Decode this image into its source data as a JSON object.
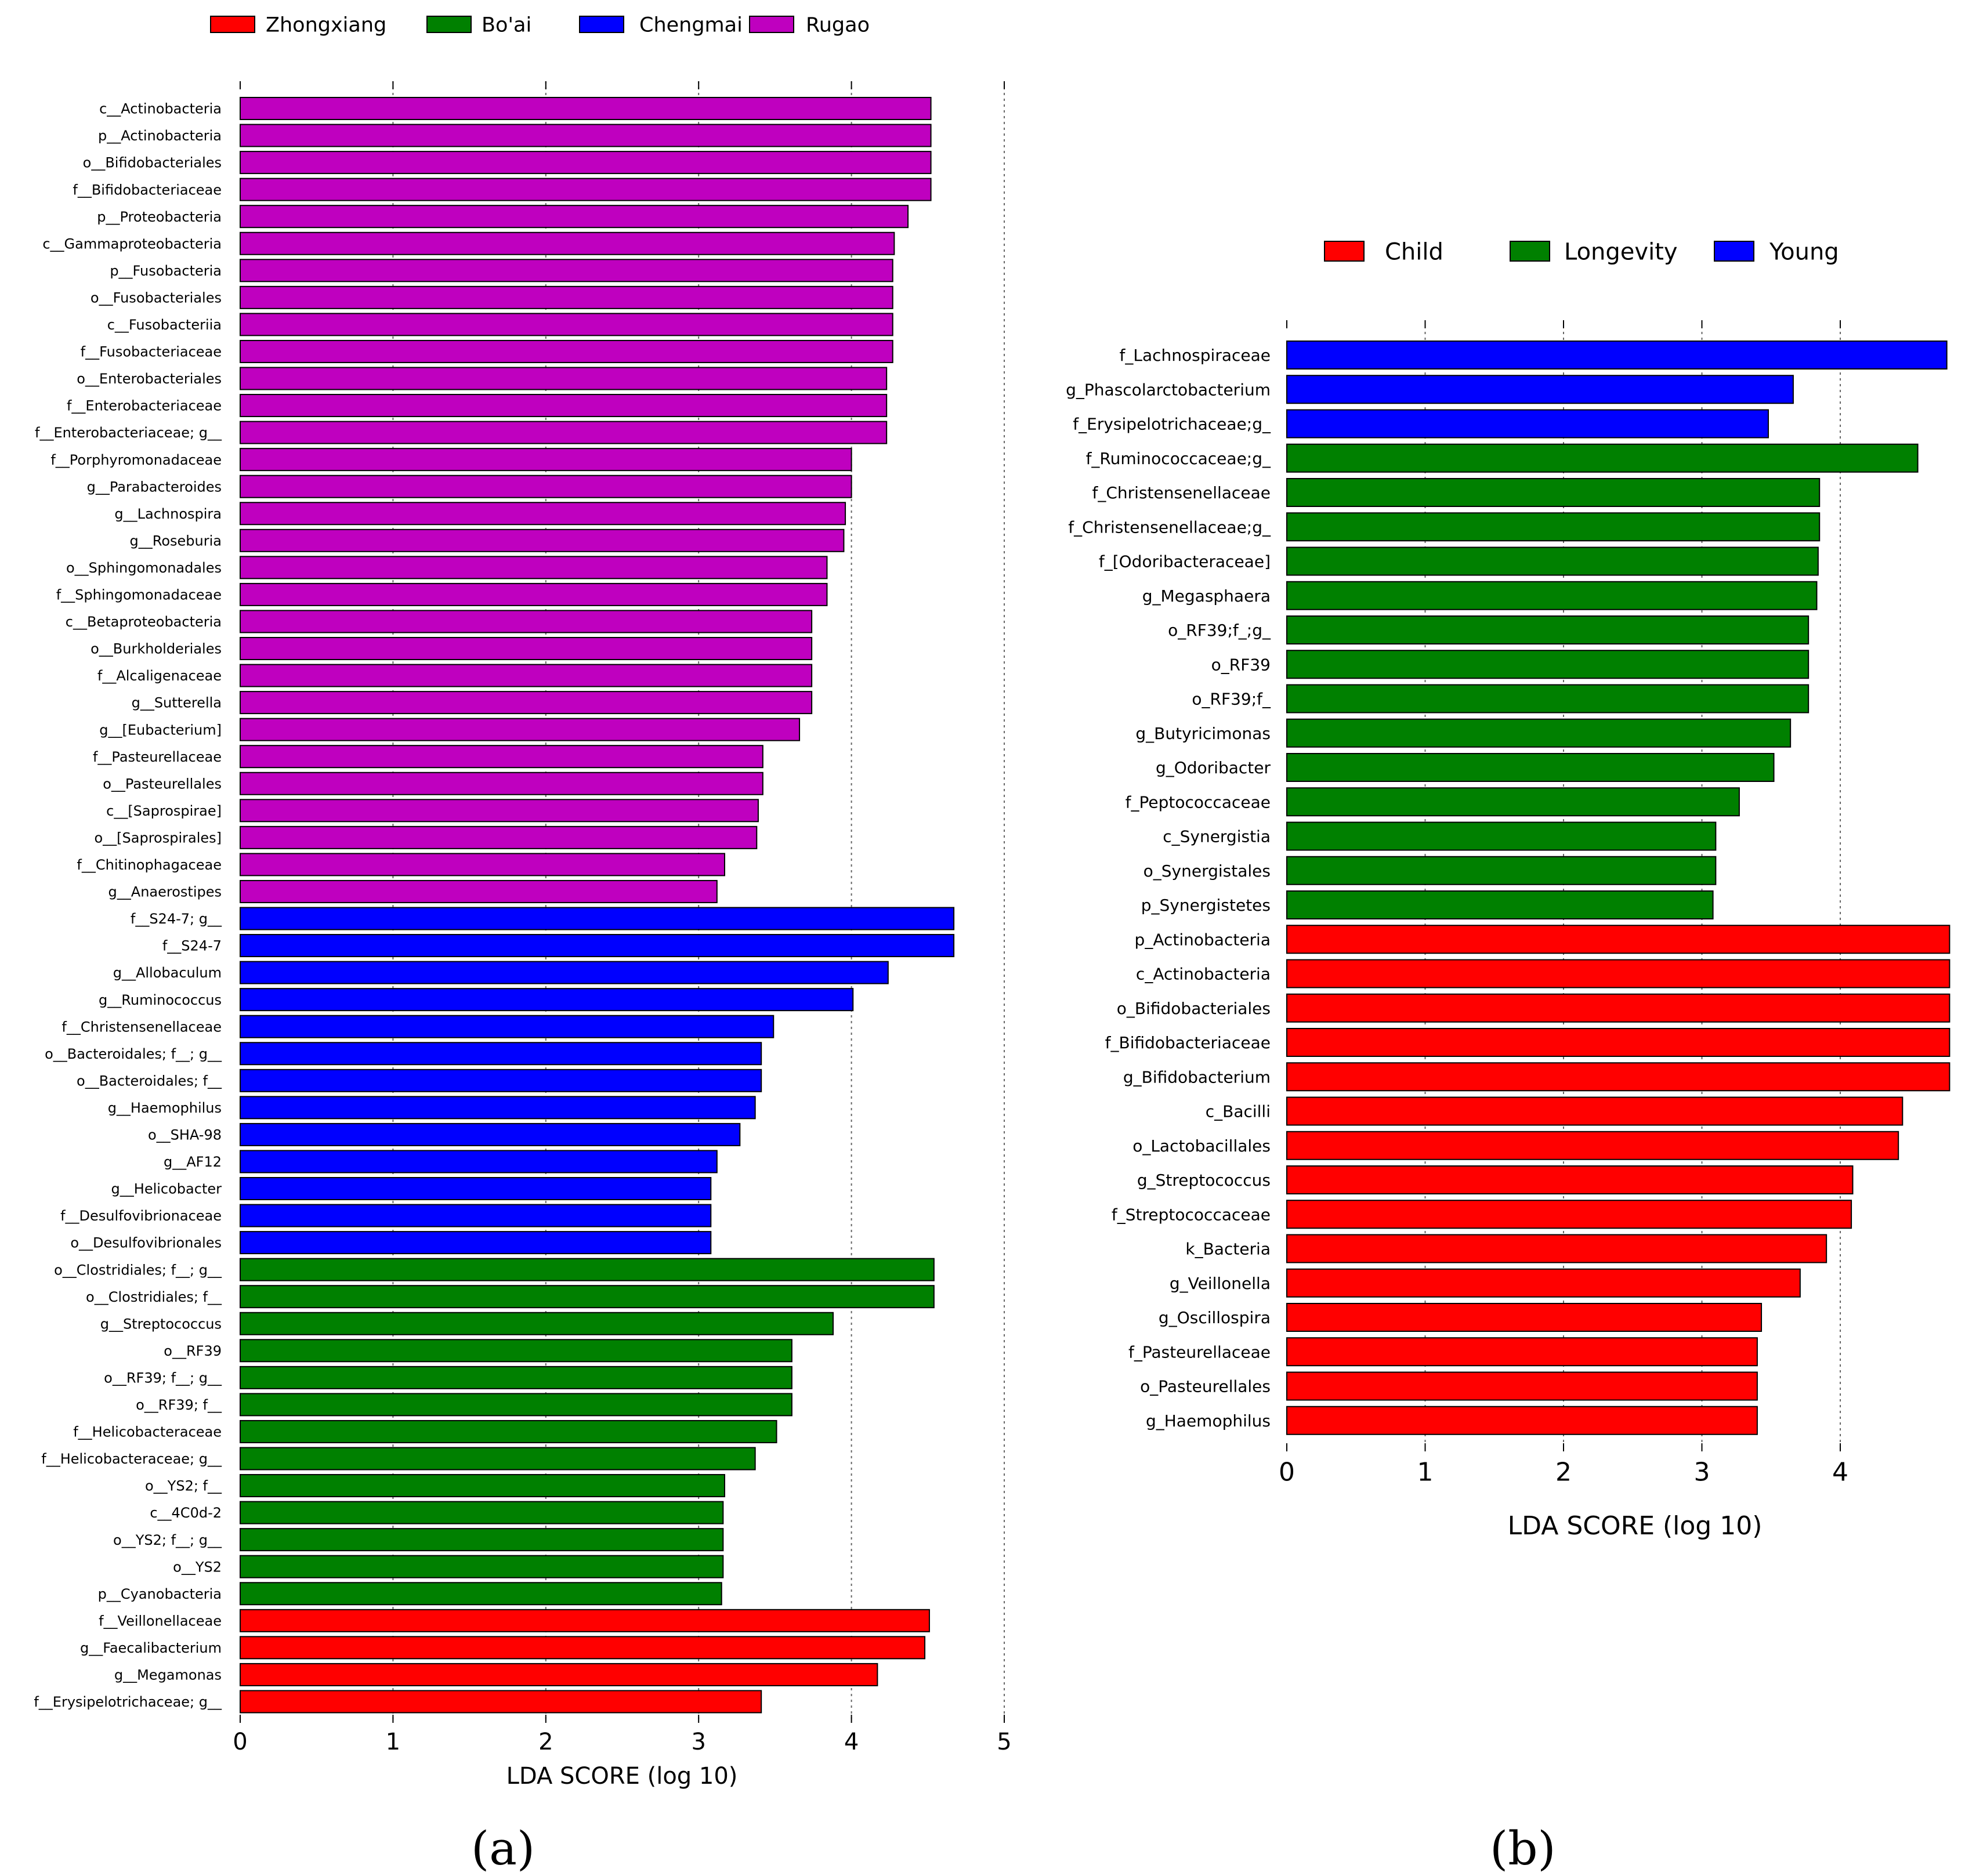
{
  "figure": {
    "caption_a": "(a)",
    "caption_b": "(b)"
  },
  "chart_data": [
    {
      "type": "bar",
      "orientation": "horizontal",
      "title": "",
      "xlabel": "LDA SCORE (log 10)",
      "ylabel": "",
      "xlim": [
        0,
        5
      ],
      "xticks": [
        0,
        1,
        2,
        3,
        4,
        5
      ],
      "grid": "vertical dotted",
      "legend_placement": "top",
      "legend": [
        {
          "name": "Zhongxiang",
          "color": "#ff0000"
        },
        {
          "name": "Bo'ai",
          "color": "#008000"
        },
        {
          "name": "Chengmai",
          "color": "#0000ff"
        },
        {
          "name": "Rugao",
          "color": "#bf00bf"
        }
      ],
      "bars": [
        {
          "label": "c__Actinobacteria",
          "value": 4.52,
          "group": "Rugao"
        },
        {
          "label": "p__Actinobacteria",
          "value": 4.52,
          "group": "Rugao"
        },
        {
          "label": "o__Bifidobacteriales",
          "value": 4.52,
          "group": "Rugao"
        },
        {
          "label": "f__Bifidobacteriaceae",
          "value": 4.52,
          "group": "Rugao"
        },
        {
          "label": "p__Proteobacteria",
          "value": 4.37,
          "group": "Rugao"
        },
        {
          "label": "c__Gammaproteobacteria",
          "value": 4.28,
          "group": "Rugao"
        },
        {
          "label": "p__Fusobacteria",
          "value": 4.27,
          "group": "Rugao"
        },
        {
          "label": "o__Fusobacteriales",
          "value": 4.27,
          "group": "Rugao"
        },
        {
          "label": "c__Fusobacteriia",
          "value": 4.27,
          "group": "Rugao"
        },
        {
          "label": "f__Fusobacteriaceae",
          "value": 4.27,
          "group": "Rugao"
        },
        {
          "label": "o__Enterobacteriales",
          "value": 4.23,
          "group": "Rugao"
        },
        {
          "label": "f__Enterobacteriaceae",
          "value": 4.23,
          "group": "Rugao"
        },
        {
          "label": "f__Enterobacteriaceae; g__",
          "value": 4.23,
          "group": "Rugao"
        },
        {
          "label": "f__Porphyromonadaceae",
          "value": 4.0,
          "group": "Rugao"
        },
        {
          "label": "g__Parabacteroides",
          "value": 4.0,
          "group": "Rugao"
        },
        {
          "label": "g__Lachnospira",
          "value": 3.96,
          "group": "Rugao"
        },
        {
          "label": "g__Roseburia",
          "value": 3.95,
          "group": "Rugao"
        },
        {
          "label": "o__Sphingomonadales",
          "value": 3.84,
          "group": "Rugao"
        },
        {
          "label": "f__Sphingomonadaceae",
          "value": 3.84,
          "group": "Rugao"
        },
        {
          "label": "c__Betaproteobacteria",
          "value": 3.74,
          "group": "Rugao"
        },
        {
          "label": "o__Burkholderiales",
          "value": 3.74,
          "group": "Rugao"
        },
        {
          "label": "f__Alcaligenaceae",
          "value": 3.74,
          "group": "Rugao"
        },
        {
          "label": "g__Sutterella",
          "value": 3.74,
          "group": "Rugao"
        },
        {
          "label": "g__[Eubacterium]",
          "value": 3.66,
          "group": "Rugao"
        },
        {
          "label": "f__Pasteurellaceae",
          "value": 3.42,
          "group": "Rugao"
        },
        {
          "label": "o__Pasteurellales",
          "value": 3.42,
          "group": "Rugao"
        },
        {
          "label": "c__[Saprospirae]",
          "value": 3.39,
          "group": "Rugao"
        },
        {
          "label": "o__[Saprospirales]",
          "value": 3.38,
          "group": "Rugao"
        },
        {
          "label": "f__Chitinophagaceae",
          "value": 3.17,
          "group": "Rugao"
        },
        {
          "label": "g__Anaerostipes",
          "value": 3.12,
          "group": "Rugao"
        },
        {
          "label": "f__S24-7; g__",
          "value": 4.67,
          "group": "Chengmai"
        },
        {
          "label": "f__S24-7",
          "value": 4.67,
          "group": "Chengmai"
        },
        {
          "label": "g__Allobaculum",
          "value": 4.24,
          "group": "Chengmai"
        },
        {
          "label": "g__Ruminococcus",
          "value": 4.01,
          "group": "Chengmai"
        },
        {
          "label": "f__Christensenellaceae",
          "value": 3.49,
          "group": "Chengmai"
        },
        {
          "label": "o__Bacteroidales; f__; g__",
          "value": 3.41,
          "group": "Chengmai"
        },
        {
          "label": "o__Bacteroidales; f__",
          "value": 3.41,
          "group": "Chengmai"
        },
        {
          "label": "g__Haemophilus",
          "value": 3.37,
          "group": "Chengmai"
        },
        {
          "label": "o__SHA-98",
          "value": 3.27,
          "group": "Chengmai"
        },
        {
          "label": "g__AF12",
          "value": 3.12,
          "group": "Chengmai"
        },
        {
          "label": "g__Helicobacter",
          "value": 3.08,
          "group": "Chengmai"
        },
        {
          "label": "f__Desulfovibrionaceae",
          "value": 3.08,
          "group": "Chengmai"
        },
        {
          "label": "o__Desulfovibrionales",
          "value": 3.08,
          "group": "Chengmai"
        },
        {
          "label": "o__Clostridiales; f__; g__",
          "value": 4.54,
          "group": "Bo'ai"
        },
        {
          "label": "o__Clostridiales; f__",
          "value": 4.54,
          "group": "Bo'ai"
        },
        {
          "label": "g__Streptococcus",
          "value": 3.88,
          "group": "Bo'ai"
        },
        {
          "label": "o__RF39",
          "value": 3.61,
          "group": "Bo'ai"
        },
        {
          "label": "o__RF39; f__; g__",
          "value": 3.61,
          "group": "Bo'ai"
        },
        {
          "label": "o__RF39; f__",
          "value": 3.61,
          "group": "Bo'ai"
        },
        {
          "label": "f__Helicobacteraceae",
          "value": 3.51,
          "group": "Bo'ai"
        },
        {
          "label": "f__Helicobacteraceae; g__",
          "value": 3.37,
          "group": "Bo'ai"
        },
        {
          "label": "o__YS2; f__",
          "value": 3.17,
          "group": "Bo'ai"
        },
        {
          "label": "c__4C0d-2",
          "value": 3.16,
          "group": "Bo'ai"
        },
        {
          "label": "o__YS2; f__; g__",
          "value": 3.16,
          "group": "Bo'ai"
        },
        {
          "label": "o__YS2",
          "value": 3.16,
          "group": "Bo'ai"
        },
        {
          "label": "p__Cyanobacteria",
          "value": 3.15,
          "group": "Bo'ai"
        },
        {
          "label": "f__Veillonellaceae",
          "value": 4.51,
          "group": "Zhongxiang"
        },
        {
          "label": "g__Faecalibacterium",
          "value": 4.48,
          "group": "Zhongxiang"
        },
        {
          "label": "g__Megamonas",
          "value": 4.17,
          "group": "Zhongxiang"
        },
        {
          "label": "f__Erysipelotrichaceae; g__",
          "value": 3.41,
          "group": "Zhongxiang"
        }
      ]
    },
    {
      "type": "bar",
      "orientation": "horizontal",
      "title": "",
      "xlabel": "LDA SCORE (log 10)",
      "ylabel": "",
      "xlim": [
        0,
        4.8
      ],
      "xticks": [
        0,
        1,
        2,
        3,
        4
      ],
      "grid": "vertical dotted",
      "legend_placement": "top",
      "legend": [
        {
          "name": "Child",
          "color": "#ff0000"
        },
        {
          "name": "Longevity",
          "color": "#008000"
        },
        {
          "name": "Young",
          "color": "#0000ff"
        }
      ],
      "bars": [
        {
          "label": "f_Lachnospiraceae",
          "value": 4.77,
          "group": "Young"
        },
        {
          "label": "g_Phascolarctobacterium",
          "value": 3.66,
          "group": "Young"
        },
        {
          "label": "f_Erysipelotrichaceae;g_",
          "value": 3.48,
          "group": "Young"
        },
        {
          "label": "f_Ruminococcaceae;g_",
          "value": 4.56,
          "group": "Longevity"
        },
        {
          "label": "f_Christensenellaceae",
          "value": 3.85,
          "group": "Longevity"
        },
        {
          "label": "f_Christensenellaceae;g_",
          "value": 3.85,
          "group": "Longevity"
        },
        {
          "label": "f_[Odoribacteraceae]",
          "value": 3.84,
          "group": "Longevity"
        },
        {
          "label": "g_Megasphaera",
          "value": 3.83,
          "group": "Longevity"
        },
        {
          "label": "o_RF39;f_;g_",
          "value": 3.77,
          "group": "Longevity"
        },
        {
          "label": "o_RF39",
          "value": 3.77,
          "group": "Longevity"
        },
        {
          "label": "o_RF39;f_",
          "value": 3.77,
          "group": "Longevity"
        },
        {
          "label": "g_Butyricimonas",
          "value": 3.64,
          "group": "Longevity"
        },
        {
          "label": "g_Odoribacter",
          "value": 3.52,
          "group": "Longevity"
        },
        {
          "label": "f_Peptococcaceae",
          "value": 3.27,
          "group": "Longevity"
        },
        {
          "label": "c_Synergistia",
          "value": 3.1,
          "group": "Longevity"
        },
        {
          "label": "o_Synergistales",
          "value": 3.1,
          "group": "Longevity"
        },
        {
          "label": "p_Synergistetes",
          "value": 3.08,
          "group": "Longevity"
        },
        {
          "label": "p_Actinobacteria",
          "value": 4.79,
          "group": "Child"
        },
        {
          "label": "c_Actinobacteria",
          "value": 4.79,
          "group": "Child"
        },
        {
          "label": "o_Bifidobacteriales",
          "value": 4.79,
          "group": "Child"
        },
        {
          "label": "f_Bifidobacteriaceae",
          "value": 4.79,
          "group": "Child"
        },
        {
          "label": "g_Bifidobacterium",
          "value": 4.79,
          "group": "Child"
        },
        {
          "label": "c_Bacilli",
          "value": 4.45,
          "group": "Child"
        },
        {
          "label": "o_Lactobacillales",
          "value": 4.42,
          "group": "Child"
        },
        {
          "label": "g_Streptococcus",
          "value": 4.09,
          "group": "Child"
        },
        {
          "label": "f_Streptococcaceae",
          "value": 4.08,
          "group": "Child"
        },
        {
          "label": "k_Bacteria",
          "value": 3.9,
          "group": "Child"
        },
        {
          "label": "g_Veillonella",
          "value": 3.71,
          "group": "Child"
        },
        {
          "label": "g_Oscillospira",
          "value": 3.43,
          "group": "Child"
        },
        {
          "label": "f_Pasteurellaceae",
          "value": 3.4,
          "group": "Child"
        },
        {
          "label": "o_Pasteurellales",
          "value": 3.4,
          "group": "Child"
        },
        {
          "label": "g_Haemophilus",
          "value": 3.4,
          "group": "Child"
        }
      ]
    }
  ]
}
